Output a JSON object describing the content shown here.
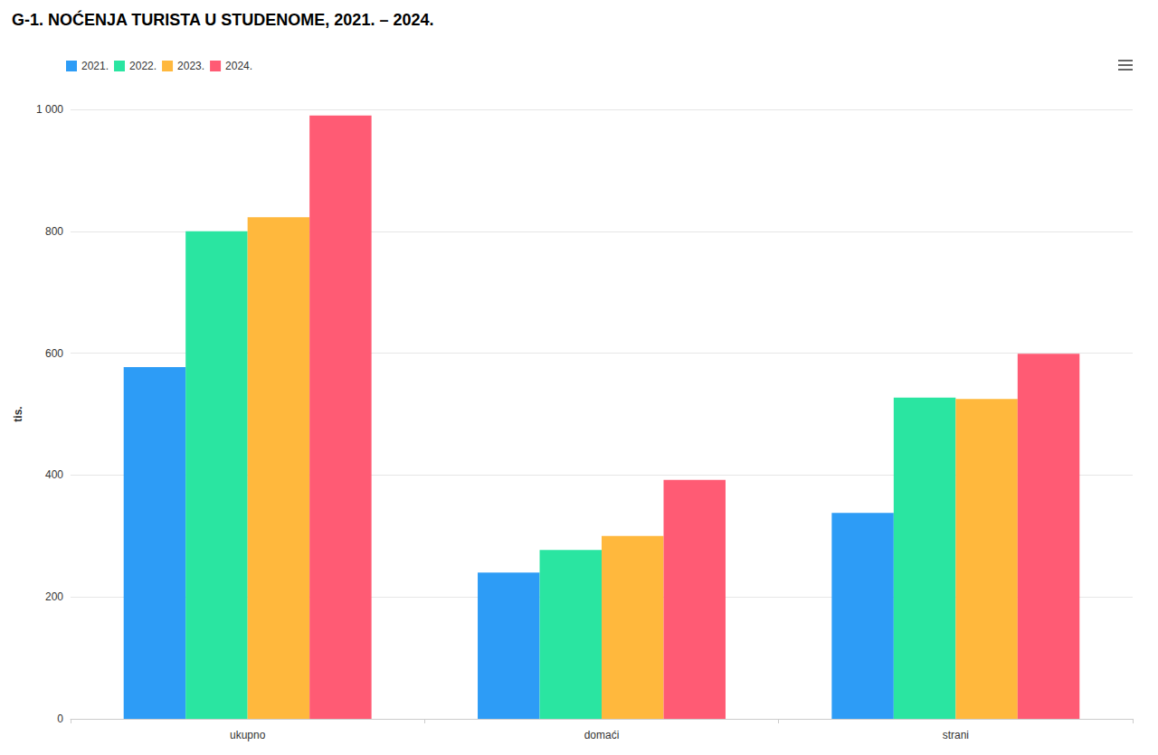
{
  "chart_data": {
    "type": "bar",
    "title": "G-1. NOĆENJA TURISTA U STUDENOME, 2021. – 2024.",
    "ylabel": "tis.",
    "categories": [
      "ukupno",
      "domaći",
      "strani"
    ],
    "series": [
      {
        "name": "2021.",
        "color": "#2d9cf6",
        "values": [
          577,
          240,
          338
        ]
      },
      {
        "name": "2022.",
        "color": "#2ae5a1",
        "values": [
          800,
          277,
          527
        ]
      },
      {
        "name": "2023.",
        "color": "#ffb83d",
        "values": [
          823,
          300,
          525
        ]
      },
      {
        "name": "2024.",
        "color": "#ff5b74",
        "values": [
          990,
          392,
          599
        ]
      }
    ],
    "ylim": [
      0,
      1000
    ],
    "yticks": [
      0,
      200,
      400,
      600,
      800,
      {
        "value": 1000,
        "label": "1 000"
      }
    ],
    "grid": true,
    "legend": "top-left"
  }
}
